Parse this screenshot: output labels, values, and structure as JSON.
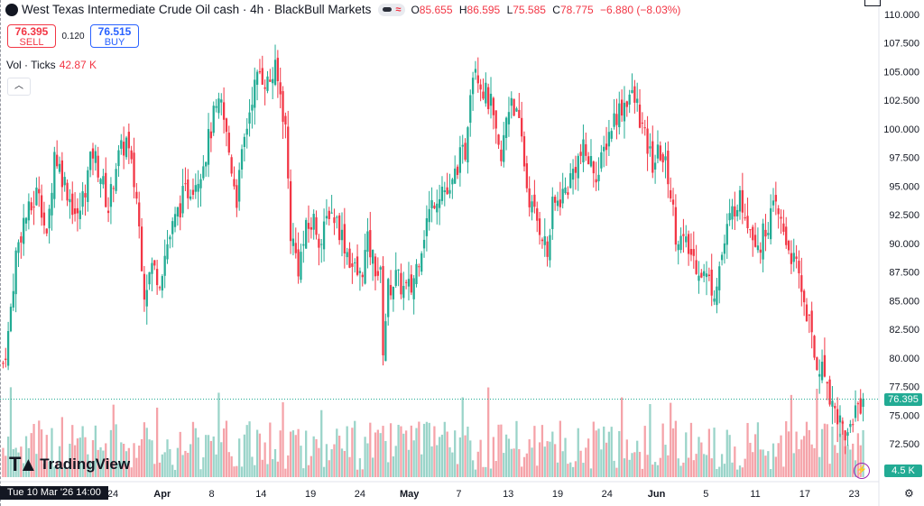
{
  "header": {
    "title": "West Texas Intermediate Crude Oil cash · 4h · BlackBull Markets",
    "ohlc": [
      {
        "key": "O",
        "val": "85.655"
      },
      {
        "key": "H",
        "val": "86.595"
      },
      {
        "key": "L",
        "val": "75.585"
      },
      {
        "key": "C",
        "val": "78.775"
      }
    ],
    "change": "−6.880 (−8.03%)"
  },
  "trade": {
    "sell_price": "76.395",
    "sell_label": "SELL",
    "spread": "0.120",
    "buy_price": "76.515",
    "buy_label": "BUY"
  },
  "volume": {
    "label": "Vol · Ticks",
    "value": "42.87 K"
  },
  "branding": {
    "name": "TradingView"
  },
  "crosshair_date": "Tue 10 Mar '26   14:00",
  "current_price_label": "76.395",
  "current_volume_label": "4.5 K",
  "colors": {
    "up": "#22ab94",
    "down": "#f23645",
    "up_vol": "#9ad4c9",
    "down_vol": "#f5a3a9"
  },
  "price_axis": [
    "110.000",
    "107.500",
    "105.000",
    "102.500",
    "100.000",
    "97.500",
    "95.000",
    "92.500",
    "90.000",
    "87.500",
    "85.000",
    "82.500",
    "80.000",
    "77.500",
    "75.000",
    "72.500"
  ],
  "time_axis": [
    "24",
    "Apr",
    "8",
    "14",
    "19",
    "24",
    "May",
    "7",
    "13",
    "19",
    "24",
    "Jun",
    "5",
    "11",
    "17",
    "23"
  ],
  "chart_data": {
    "type": "candlestick",
    "title": "West Texas Intermediate Crude Oil cash",
    "interval": "4h",
    "ylim": [
      70.0,
      110.5
    ],
    "x_range": [
      "Mar 18",
      "Jun 23"
    ],
    "path_close": [
      [
        0,
        79.5
      ],
      [
        2,
        82
      ],
      [
        5,
        89
      ],
      [
        8,
        92
      ],
      [
        11,
        93
      ],
      [
        14,
        95
      ],
      [
        17,
        90
      ],
      [
        20,
        98
      ],
      [
        23,
        96
      ],
      [
        26,
        94
      ],
      [
        29,
        92
      ],
      [
        32,
        95
      ],
      [
        35,
        98
      ],
      [
        38,
        96
      ],
      [
        41,
        93
      ],
      [
        44,
        97
      ],
      [
        48,
        99
      ],
      [
        52,
        94
      ],
      [
        55,
        86
      ],
      [
        58,
        88
      ],
      [
        61,
        87
      ],
      [
        64,
        90
      ],
      [
        67,
        92
      ],
      [
        70,
        94
      ],
      [
        73,
        95
      ],
      [
        76,
        96
      ],
      [
        79,
        98
      ],
      [
        82,
        101
      ],
      [
        85,
        102
      ],
      [
        88,
        98
      ],
      [
        91,
        94
      ],
      [
        94,
        99
      ],
      [
        97,
        103
      ],
      [
        100,
        105
      ],
      [
        103,
        104
      ],
      [
        106,
        105
      ],
      [
        108,
        103
      ],
      [
        110,
        100
      ],
      [
        112,
        91
      ],
      [
        115,
        88
      ],
      [
        118,
        91
      ],
      [
        121,
        92
      ],
      [
        124,
        90
      ],
      [
        127,
        93
      ],
      [
        130,
        92
      ],
      [
        133,
        90
      ],
      [
        136,
        88
      ],
      [
        139,
        87
      ],
      [
        142,
        90
      ],
      [
        145,
        88
      ],
      [
        147,
        87
      ],
      [
        148,
        81
      ],
      [
        150,
        86
      ],
      [
        153,
        87
      ],
      [
        156,
        86
      ],
      [
        159,
        86
      ],
      [
        162,
        89
      ],
      [
        165,
        92
      ],
      [
        168,
        94
      ],
      [
        171,
        95
      ],
      [
        174,
        94
      ],
      [
        177,
        97
      ],
      [
        180,
        98
      ],
      [
        182,
        104
      ],
      [
        184,
        106
      ],
      [
        186,
        104
      ],
      [
        188,
        103
      ],
      [
        190,
        102
      ],
      [
        192,
        99
      ],
      [
        194,
        97
      ],
      [
        196,
        101
      ],
      [
        198,
        103
      ],
      [
        200,
        101
      ],
      [
        202,
        99
      ],
      [
        204,
        95
      ],
      [
        206,
        93
      ],
      [
        208,
        92
      ],
      [
        210,
        91
      ],
      [
        212,
        89
      ],
      [
        214,
        93
      ],
      [
        217,
        94
      ],
      [
        220,
        95
      ],
      [
        223,
        97
      ],
      [
        226,
        98
      ],
      [
        229,
        97
      ],
      [
        232,
        96
      ],
      [
        235,
        99
      ],
      [
        238,
        101
      ],
      [
        241,
        102
      ],
      [
        244,
        103
      ],
      [
        247,
        102
      ],
      [
        250,
        99
      ],
      [
        253,
        97
      ],
      [
        256,
        98
      ],
      [
        259,
        96
      ],
      [
        262,
        91
      ],
      [
        265,
        90
      ],
      [
        268,
        89
      ],
      [
        271,
        88
      ],
      [
        274,
        87
      ],
      [
        277,
        86
      ],
      [
        280,
        89
      ],
      [
        283,
        92
      ],
      [
        286,
        94
      ],
      [
        289,
        93
      ],
      [
        292,
        91
      ],
      [
        295,
        90
      ],
      [
        298,
        92
      ],
      [
        301,
        93
      ],
      [
        304,
        91
      ],
      [
        307,
        89
      ],
      [
        310,
        87
      ],
      [
        312,
        85
      ],
      [
        314,
        83
      ],
      [
        316,
        80
      ],
      [
        319,
        79
      ],
      [
        321,
        78
      ],
      [
        323,
        76
      ],
      [
        325,
        75
      ],
      [
        327,
        74
      ],
      [
        329,
        73
      ],
      [
        331,
        75
      ],
      [
        333,
        76
      ],
      [
        335,
        76.4
      ]
    ],
    "last_price": 76.395,
    "volume_label": "Vol · Ticks",
    "volume_last": "42.87 K"
  }
}
